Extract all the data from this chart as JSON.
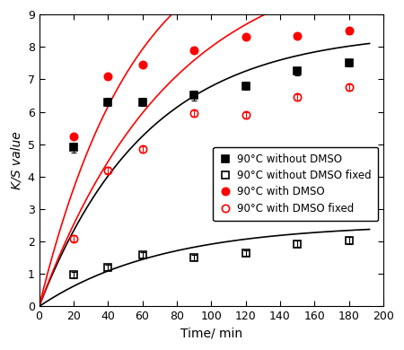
{
  "title": "",
  "xlabel": "Time/ min",
  "ylabel": "K/S value",
  "xlim": [
    0,
    200
  ],
  "ylim": [
    0,
    9
  ],
  "xticks": [
    0,
    20,
    40,
    60,
    80,
    100,
    120,
    140,
    160,
    180,
    200
  ],
  "yticks": [
    0,
    1,
    2,
    3,
    4,
    5,
    6,
    7,
    8,
    9
  ],
  "series": [
    {
      "label": "90°C without DMSO",
      "x": [
        20,
        40,
        60,
        90,
        120,
        150,
        180
      ],
      "y": [
        4.9,
        6.3,
        6.3,
        6.5,
        6.8,
        7.25,
        7.5
      ],
      "yerr": [
        0.15,
        0.12,
        0.12,
        0.15,
        0.12,
        0.12,
        0.1
      ],
      "marker": "s",
      "fillstyle": "full",
      "color": "black",
      "fit": {
        "a": 8.5,
        "b": 0.016
      }
    },
    {
      "label": "90°C without DMSO fixed",
      "x": [
        20,
        40,
        60,
        90,
        120,
        150,
        180
      ],
      "y": [
        0.97,
        1.2,
        1.6,
        1.5,
        1.65,
        1.93,
        2.03
      ],
      "yerr": [
        0.1,
        0.08,
        0.08,
        0.08,
        0.08,
        0.1,
        0.1
      ],
      "marker": "s",
      "fillstyle": "none",
      "color": "black",
      "fit": {
        "a": 2.55,
        "b": 0.014
      }
    },
    {
      "label": "90°C with DMSO",
      "x": [
        20,
        40,
        60,
        90,
        120,
        150,
        180
      ],
      "y": [
        5.25,
        7.1,
        7.45,
        7.9,
        8.3,
        8.35,
        8.5
      ],
      "yerr": [
        0.08,
        0.08,
        0.08,
        0.1,
        0.08,
        0.08,
        0.1
      ],
      "marker": "o",
      "fillstyle": "full",
      "color": "red",
      "fit": {
        "a": 12.0,
        "b": 0.018
      }
    },
    {
      "label": "90°C with DMSO fixed",
      "x": [
        20,
        40,
        60,
        90,
        120,
        150,
        180
      ],
      "y": [
        2.1,
        4.2,
        4.85,
        5.95,
        5.9,
        6.45,
        6.75
      ],
      "yerr": [
        0.1,
        0.1,
        0.1,
        0.1,
        0.1,
        0.1,
        0.1
      ],
      "marker": "o",
      "fillstyle": "none",
      "color": "red",
      "fit": {
        "a": 11.0,
        "b": 0.013
      }
    }
  ],
  "fit_x_start": 0,
  "fit_x_end": 192
}
